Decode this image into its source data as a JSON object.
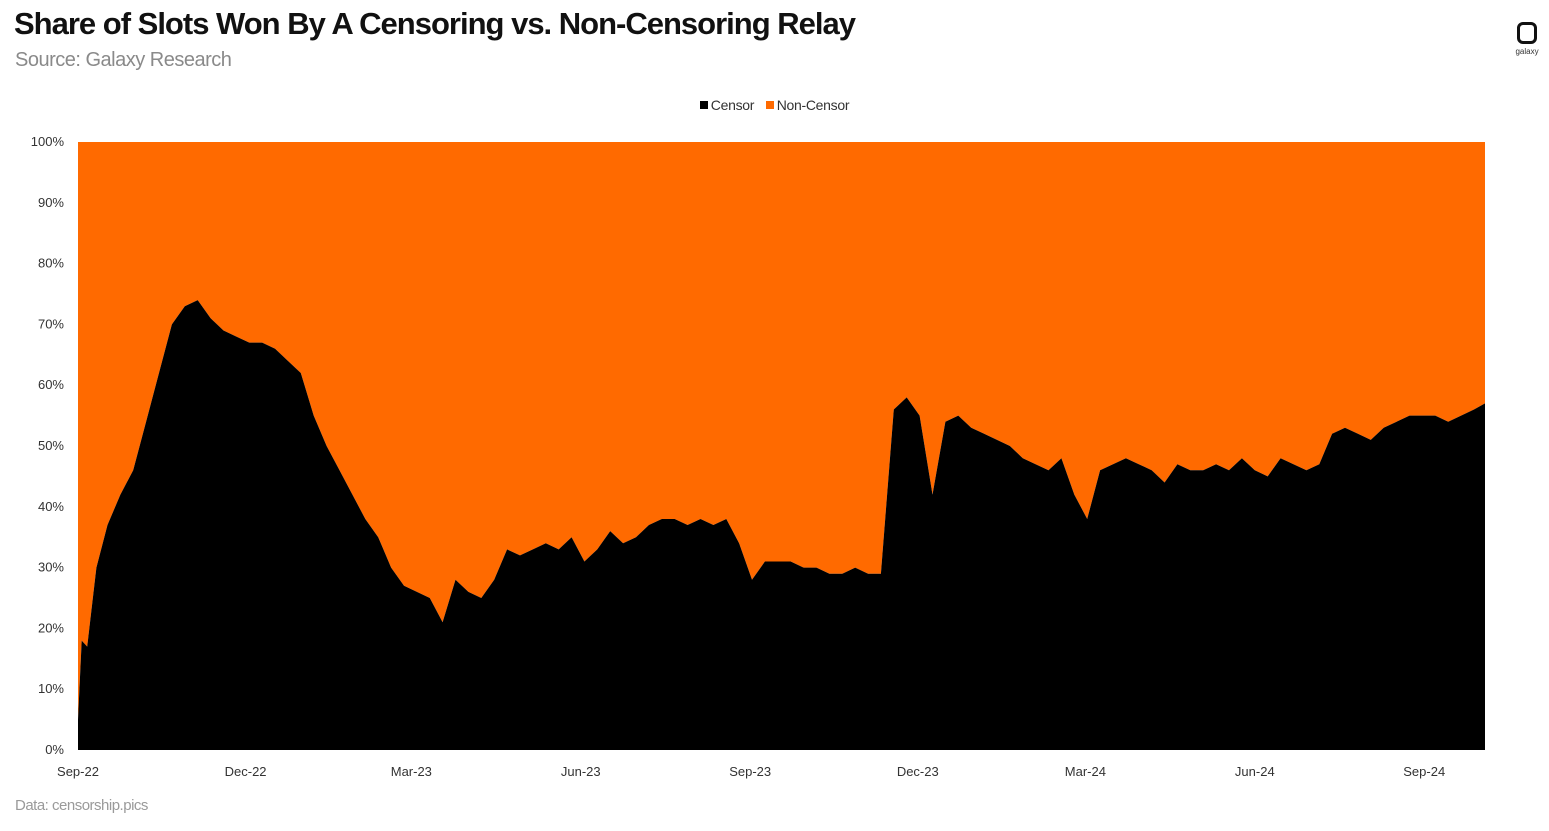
{
  "header": {
    "title": "Share of Slots Won By A Censoring vs. Non-Censoring Relay",
    "subtitle": "Source: Galaxy Research",
    "logo_text": "galaxy",
    "source_note": "Data: censorship.pics"
  },
  "colors": {
    "censor": "#000000",
    "non_censor": "#ff6a00"
  },
  "chart_data": {
    "type": "area",
    "stacked": true,
    "normalized_percent": true,
    "title": "Share of Slots Won By A Censoring vs. Non-Censoring Relay",
    "subtitle": "Source: Galaxy Research",
    "xlabel": "",
    "ylabel": "",
    "ylim": [
      0,
      100
    ],
    "y_ticks": [
      "0%",
      "10%",
      "20%",
      "30%",
      "40%",
      "50%",
      "60%",
      "70%",
      "80%",
      "90%",
      "100%"
    ],
    "x_ticks": [
      "Sep-22",
      "Dec-22",
      "Mar-23",
      "Jun-23",
      "Sep-23",
      "Dec-23",
      "Mar-24",
      "Jun-24",
      "Sep-24"
    ],
    "legend": {
      "position": "top-center",
      "entries": [
        "Censor",
        "Non-Censor"
      ]
    },
    "grid": false,
    "x": [
      "2022-09-15",
      "2022-09-17",
      "2022-09-20",
      "2022-09-25",
      "2022-10-01",
      "2022-10-08",
      "2022-10-15",
      "2022-10-22",
      "2022-10-29",
      "2022-11-05",
      "2022-11-12",
      "2022-11-19",
      "2022-11-26",
      "2022-12-03",
      "2022-12-10",
      "2022-12-17",
      "2022-12-24",
      "2022-12-31",
      "2023-01-07",
      "2023-01-14",
      "2023-01-21",
      "2023-01-28",
      "2023-02-04",
      "2023-02-11",
      "2023-02-18",
      "2023-02-25",
      "2023-03-04",
      "2023-03-11",
      "2023-03-18",
      "2023-03-25",
      "2023-04-01",
      "2023-04-08",
      "2023-04-15",
      "2023-04-22",
      "2023-04-29",
      "2023-05-06",
      "2023-05-13",
      "2023-05-20",
      "2023-05-27",
      "2023-06-03",
      "2023-06-10",
      "2023-06-17",
      "2023-06-24",
      "2023-07-01",
      "2023-07-08",
      "2023-07-15",
      "2023-07-22",
      "2023-07-29",
      "2023-08-05",
      "2023-08-12",
      "2023-08-19",
      "2023-08-26",
      "2023-09-02",
      "2023-09-09",
      "2023-09-16",
      "2023-09-23",
      "2023-09-30",
      "2023-10-07",
      "2023-10-14",
      "2023-10-21",
      "2023-10-28",
      "2023-11-04",
      "2023-11-11",
      "2023-11-18",
      "2023-11-25",
      "2023-12-02",
      "2023-12-09",
      "2023-12-16",
      "2023-12-23",
      "2023-12-30",
      "2024-01-06",
      "2024-01-13",
      "2024-01-20",
      "2024-01-27",
      "2024-02-03",
      "2024-02-10",
      "2024-02-17",
      "2024-02-24",
      "2024-03-02",
      "2024-03-09",
      "2024-03-16",
      "2024-03-23",
      "2024-03-30",
      "2024-04-06",
      "2024-04-13",
      "2024-04-20",
      "2024-04-27",
      "2024-05-04",
      "2024-05-11",
      "2024-05-18",
      "2024-05-25",
      "2024-06-01",
      "2024-06-08",
      "2024-06-15",
      "2024-06-22",
      "2024-06-29",
      "2024-07-06",
      "2024-07-13",
      "2024-07-20",
      "2024-07-27",
      "2024-08-03",
      "2024-08-10",
      "2024-08-17",
      "2024-08-24",
      "2024-08-31",
      "2024-09-07",
      "2024-09-14",
      "2024-09-21",
      "2024-09-28",
      "2024-10-05",
      "2024-10-12",
      "2024-10-18"
    ],
    "series": [
      {
        "name": "Censor",
        "values": [
          5,
          18,
          17,
          30,
          37,
          42,
          46,
          54,
          62,
          70,
          73,
          74,
          71,
          69,
          68,
          67,
          67,
          66,
          64,
          62,
          55,
          50,
          46,
          42,
          38,
          35,
          30,
          27,
          26,
          25,
          21,
          28,
          26,
          25,
          28,
          33,
          32,
          33,
          34,
          33,
          35,
          31,
          33,
          36,
          34,
          35,
          37,
          38,
          38,
          37,
          38,
          37,
          38,
          34,
          28,
          31,
          31,
          31,
          30,
          30,
          29,
          29,
          30,
          29,
          29,
          56,
          58,
          55,
          42,
          54,
          55,
          53,
          52,
          51,
          50,
          48,
          47,
          46,
          48,
          42,
          38,
          46,
          47,
          48,
          47,
          46,
          44,
          47,
          46,
          46,
          47,
          46,
          48,
          46,
          45,
          48,
          47,
          46,
          47,
          52,
          53,
          52,
          51,
          53,
          54,
          55,
          55,
          55,
          54,
          55,
          56,
          57
        ]
      },
      {
        "name": "Non-Censor",
        "values": [
          95,
          82,
          83,
          70,
          63,
          58,
          54,
          46,
          38,
          30,
          27,
          26,
          29,
          31,
          32,
          33,
          33,
          34,
          36,
          38,
          45,
          50,
          54,
          58,
          62,
          65,
          70,
          73,
          74,
          75,
          79,
          72,
          74,
          75,
          72,
          67,
          68,
          67,
          66,
          67,
          65,
          69,
          67,
          64,
          66,
          65,
          63,
          62,
          62,
          63,
          62,
          63,
          62,
          66,
          72,
          69,
          69,
          69,
          70,
          70,
          71,
          71,
          70,
          71,
          71,
          44,
          42,
          45,
          58,
          46,
          45,
          47,
          48,
          49,
          50,
          52,
          53,
          54,
          52,
          58,
          62,
          54,
          53,
          52,
          53,
          54,
          56,
          53,
          54,
          54,
          53,
          54,
          52,
          54,
          55,
          52,
          53,
          54,
          53,
          48,
          47,
          48,
          49,
          47,
          46,
          45,
          45,
          45,
          46,
          45,
          44,
          43
        ]
      }
    ]
  }
}
